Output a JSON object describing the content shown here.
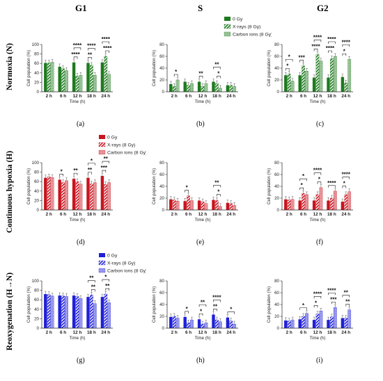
{
  "figure": {
    "column_titles": [
      "G1",
      "S",
      "G2"
    ],
    "row_titles": [
      "Normoxia (N)",
      "Continuous hypoxia (H)",
      "Reoxygenation (H→N)"
    ],
    "legend_labels": [
      "0 Gy",
      "X-rays (8 Gy)",
      "Carbon ions (8 Gy)"
    ],
    "row_colors": [
      "#1e7a1e",
      "#c8141e",
      "#1f1fd8"
    ],
    "ylabel": "Cell population (%)",
    "xlabel": "Time (h)",
    "categories": [
      "2 h",
      "6 h",
      "12 h",
      "18 h",
      "24 h"
    ],
    "panel_labels": [
      "(a)",
      "(b)",
      "(c)",
      "(d)",
      "(e)",
      "(f)",
      "(g)",
      "(h)",
      "(i)"
    ]
  },
  "chart_data": [
    {
      "panel": "(a)",
      "type": "bar",
      "title": "",
      "ylabel": "Cell population (%)",
      "xlabel": "Time (h)",
      "ylim": [
        0,
        100
      ],
      "ticks": [
        0,
        20,
        40,
        60,
        80,
        100
      ],
      "categories": [
        "2 h",
        "6 h",
        "12 h",
        "18 h",
        "24 h"
      ],
      "series": [
        {
          "name": "0 Gy",
          "values": [
            61,
            53,
            62,
            61,
            62
          ]
        },
        {
          "name": "X-rays (8 Gy)",
          "values": [
            61,
            49,
            33,
            56,
            75
          ]
        },
        {
          "name": "Carbon ions (8 Gy)",
          "values": [
            63,
            45,
            35,
            35,
            37
          ]
        }
      ],
      "annotations": [
        {
          "text": "****",
          "i": 2,
          "from": 0,
          "to": 1,
          "level": 0
        },
        {
          "text": "****",
          "i": 2,
          "from": 0,
          "to": 2,
          "level": 1
        },
        {
          "text": "**",
          "i": 3,
          "from": 0,
          "to": 1,
          "level": 0
        },
        {
          "text": "****",
          "i": 3,
          "from": 0,
          "to": 2,
          "level": 1
        },
        {
          "text": "****",
          "i": 4,
          "from": 1,
          "to": 2,
          "level": 0
        },
        {
          "text": "****",
          "i": 4,
          "from": 0,
          "to": 2,
          "level": 1
        }
      ],
      "legend_position": "none"
    },
    {
      "panel": "(b)",
      "type": "bar",
      "title": "",
      "ylabel": "Cell population (%)",
      "xlabel": "Time (h)",
      "ylim": [
        0,
        80
      ],
      "ticks": [
        0,
        20,
        40,
        60,
        80
      ],
      "categories": [
        "2 h",
        "6 h",
        "12 h",
        "18 h",
        "24 h"
      ],
      "series": [
        {
          "name": "0 Gy",
          "values": [
            13,
            17,
            17,
            17,
            11
          ]
        },
        {
          "name": "X-rays (8 Gy)",
          "values": [
            9,
            11,
            9,
            14,
            11
          ]
        },
        {
          "name": "Carbon ions (8 Gy)",
          "values": [
            20,
            14,
            14,
            6,
            9
          ]
        }
      ],
      "annotations": [
        {
          "text": "*",
          "i": 0,
          "from": 1,
          "to": 2,
          "level": 0
        },
        {
          "text": "**",
          "i": 2,
          "from": 0,
          "to": 1,
          "level": 0
        },
        {
          "text": "*",
          "i": 3,
          "from": 1,
          "to": 2,
          "level": 0
        },
        {
          "text": "**",
          "i": 3,
          "from": 0,
          "to": 2,
          "level": 1
        }
      ],
      "legend_position": "top-right"
    },
    {
      "panel": "(c)",
      "type": "bar",
      "title": "",
      "ylabel": "Cell population (%)",
      "xlabel": "Time (h)",
      "ylim": [
        0,
        80
      ],
      "ticks": [
        0,
        20,
        40,
        60,
        80
      ],
      "categories": [
        "2 h",
        "6 h",
        "12 h",
        "18 h",
        "24 h"
      ],
      "series": [
        {
          "name": "0 Gy",
          "values": [
            28,
            28,
            24,
            24,
            25
          ]
        },
        {
          "name": "X-rays (8 Gy)",
          "values": [
            30,
            44,
            63,
            56,
            15
          ]
        },
        {
          "name": "Carbon ions (8 Gy)",
          "values": [
            18,
            35,
            52,
            60,
            55
          ]
        }
      ],
      "annotations": [
        {
          "text": "*",
          "i": 0,
          "from": 0,
          "to": 1,
          "level": 0
        },
        {
          "text": "*",
          "i": 0,
          "from": 0,
          "to": 2,
          "level": 1
        },
        {
          "text": "***",
          "i": 1,
          "from": 0,
          "to": 1,
          "level": 0
        },
        {
          "text": "****",
          "i": 2,
          "from": 0,
          "to": 1,
          "level": 0
        },
        {
          "text": "****",
          "i": 2,
          "from": 0,
          "to": 2,
          "level": 1
        },
        {
          "text": "****",
          "i": 3,
          "from": 0,
          "to": 1,
          "level": 0
        },
        {
          "text": "****",
          "i": 3,
          "from": 0,
          "to": 2,
          "level": 1
        },
        {
          "text": "*",
          "i": 4,
          "from": 0,
          "to": 1,
          "level": 0
        },
        {
          "text": "****",
          "i": 4,
          "from": 0,
          "to": 2,
          "level": 1
        }
      ],
      "legend_position": "none"
    },
    {
      "panel": "(d)",
      "type": "bar",
      "title": "",
      "ylabel": "Cell population (%)",
      "xlabel": "Time (h)",
      "ylim": [
        0,
        100
      ],
      "ticks": [
        0,
        20,
        40,
        60,
        80,
        100
      ],
      "categories": [
        "2 h",
        "6 h",
        "12 h",
        "18 h",
        "24 h"
      ],
      "series": [
        {
          "name": "0 Gy",
          "values": [
            68,
            64,
            66,
            68,
            72
          ]
        },
        {
          "name": "X-rays (8 Gy)",
          "values": [
            70,
            58,
            60,
            55,
            54
          ]
        },
        {
          "name": "Carbon ions (8 Gy)",
          "values": [
            69,
            62,
            55,
            58,
            58
          ]
        }
      ],
      "annotations": [
        {
          "text": "*",
          "i": 1,
          "from": 0,
          "to": 1,
          "level": 0
        },
        {
          "text": "**",
          "i": 2,
          "from": 0,
          "to": 1,
          "level": 0
        },
        {
          "text": "**",
          "i": 3,
          "from": 0,
          "to": 1,
          "level": 0
        },
        {
          "text": "*",
          "i": 3,
          "from": 0,
          "to": 2,
          "level": 1
        },
        {
          "text": "***",
          "i": 4,
          "from": 0,
          "to": 1,
          "level": 0
        },
        {
          "text": "**",
          "i": 4,
          "from": 0,
          "to": 2,
          "level": 1
        }
      ],
      "legend_position": "top-right"
    },
    {
      "panel": "(e)",
      "type": "bar",
      "title": "",
      "ylabel": "Cell population (%)",
      "xlabel": "Time (h)",
      "ylim": [
        0,
        80
      ],
      "ticks": [
        0,
        20,
        40,
        60,
        80
      ],
      "categories": [
        "2 h",
        "6 h",
        "12 h",
        "18 h",
        "24 h"
      ],
      "series": [
        {
          "name": "0 Gy",
          "values": [
            18,
            15,
            16,
            17,
            12
          ]
        },
        {
          "name": "X-rays (8 Gy)",
          "values": [
            17,
            24,
            14,
            16,
            11
          ]
        },
        {
          "name": "Carbon ions (8 Gy)",
          "values": [
            15,
            16,
            11,
            6,
            8
          ]
        }
      ],
      "annotations": [
        {
          "text": "*",
          "i": 1,
          "from": 0,
          "to": 1,
          "level": 0
        },
        {
          "text": "*",
          "i": 3,
          "from": 1,
          "to": 2,
          "level": 0
        },
        {
          "text": "**",
          "i": 3,
          "from": 0,
          "to": 2,
          "level": 1
        }
      ],
      "legend_position": "none"
    },
    {
      "panel": "(f)",
      "type": "bar",
      "title": "",
      "ylabel": "Cell population (%)",
      "xlabel": "Time (h)",
      "ylim": [
        0,
        80
      ],
      "ticks": [
        0,
        20,
        40,
        60,
        80
      ],
      "categories": [
        "2 h",
        "6 h",
        "12 h",
        "18 h",
        "24 h"
      ],
      "series": [
        {
          "name": "0 Gy",
          "values": [
            18,
            16,
            16,
            16,
            14
          ]
        },
        {
          "name": "X-rays (8 Gy)",
          "values": [
            17,
            28,
            26,
            20,
            26
          ]
        },
        {
          "name": "Carbon ions (8 Gy)",
          "values": [
            18,
            26,
            38,
            32,
            31
          ]
        }
      ],
      "annotations": [
        {
          "text": "*",
          "i": 1,
          "from": 0,
          "to": 1,
          "level": 0
        },
        {
          "text": "*",
          "i": 1,
          "from": 0,
          "to": 2,
          "level": 1
        },
        {
          "text": "*",
          "i": 2,
          "from": 1,
          "to": 2,
          "level": 0
        },
        {
          "text": "****",
          "i": 2,
          "from": 0,
          "to": 2,
          "level": 1
        },
        {
          "text": "****",
          "i": 3,
          "from": 0,
          "to": 2,
          "level": 0
        },
        {
          "text": "*",
          "i": 4,
          "from": 0,
          "to": 1,
          "level": 0
        },
        {
          "text": "****",
          "i": 4,
          "from": 0,
          "to": 2,
          "level": 1
        }
      ],
      "legend_position": "none"
    },
    {
      "panel": "(g)",
      "type": "bar",
      "title": "",
      "ylabel": "Cell population (%)",
      "xlabel": "Time (h)",
      "ylim": [
        0,
        100
      ],
      "ticks": [
        0,
        20,
        40,
        60,
        80,
        100
      ],
      "categories": [
        "2 h",
        "6 h",
        "12 h",
        "18 h",
        "24 h"
      ],
      "series": [
        {
          "name": "0 Gy",
          "values": [
            72,
            69,
            69,
            66,
            66
          ]
        },
        {
          "name": "X-rays (8 Gy)",
          "values": [
            71,
            68,
            67,
            70,
            72
          ]
        },
        {
          "name": "Carbon ions (8 Gy)",
          "values": [
            68,
            67,
            63,
            52,
            54
          ]
        }
      ],
      "annotations": [
        {
          "text": "**",
          "i": 3,
          "from": 1,
          "to": 2,
          "level": 0
        },
        {
          "text": "**",
          "i": 3,
          "from": 0,
          "to": 2,
          "level": 1
        },
        {
          "text": "**",
          "i": 4,
          "from": 1,
          "to": 2,
          "level": 0
        },
        {
          "text": "*",
          "i": 4,
          "from": 0,
          "to": 2,
          "level": 1
        }
      ],
      "legend_position": "top-right"
    },
    {
      "panel": "(h)",
      "type": "bar",
      "title": "",
      "ylabel": "Cell population (%)",
      "xlabel": "Time (h)",
      "ylim": [
        0,
        80
      ],
      "ticks": [
        0,
        20,
        40,
        60,
        80
      ],
      "categories": [
        "2 h",
        "6 h",
        "12 h",
        "18 h",
        "24 h"
      ],
      "series": [
        {
          "name": "0 Gy",
          "values": [
            19,
            19,
            15,
            23,
            18
          ]
        },
        {
          "name": "X-rays (8 Gy)",
          "values": [
            20,
            9,
            7,
            14,
            12
          ]
        },
        {
          "name": "Carbon ions (8 Gy)",
          "values": [
            17,
            14,
            9,
            11,
            7
          ]
        }
      ],
      "annotations": [
        {
          "text": "*",
          "i": 1,
          "from": 0,
          "to": 1,
          "level": 0
        },
        {
          "text": "*",
          "i": 2,
          "from": 0,
          "to": 1,
          "level": 0
        },
        {
          "text": "**",
          "i": 2,
          "from": 0,
          "to": 2,
          "level": 1
        },
        {
          "text": "**",
          "i": 3,
          "from": 0,
          "to": 1,
          "level": 0
        },
        {
          "text": "****",
          "i": 3,
          "from": 0,
          "to": 2,
          "level": 1
        },
        {
          "text": "*",
          "i": 4,
          "from": 0,
          "to": 2,
          "level": 0
        }
      ],
      "legend_position": "none"
    },
    {
      "panel": "(i)",
      "type": "bar",
      "title": "",
      "ylabel": "Cell population (%)",
      "xlabel": "Time (h)",
      "ylim": [
        0,
        80
      ],
      "ticks": [
        0,
        20,
        40,
        60,
        80
      ],
      "categories": [
        "2 h",
        "6 h",
        "12 h",
        "18 h",
        "24 h"
      ],
      "series": [
        {
          "name": "0 Gy",
          "values": [
            13,
            15,
            14,
            14,
            17
          ]
        },
        {
          "name": "X-rays (8 Gy)",
          "values": [
            12,
            20,
            24,
            19,
            17
          ]
        },
        {
          "name": "Carbon ions (8 Gy)",
          "values": [
            14,
            25,
            29,
            35,
            31
          ]
        }
      ],
      "annotations": [
        {
          "text": "*",
          "i": 1,
          "from": 0,
          "to": 2,
          "level": 0
        },
        {
          "text": "*",
          "i": 2,
          "from": 0,
          "to": 1,
          "level": 0
        },
        {
          "text": "****",
          "i": 2,
          "from": 0,
          "to": 2,
          "level": 1
        },
        {
          "text": "***",
          "i": 3,
          "from": 1,
          "to": 2,
          "level": 0
        },
        {
          "text": "****",
          "i": 3,
          "from": 0,
          "to": 2,
          "level": 1
        },
        {
          "text": "**",
          "i": 4,
          "from": 1,
          "to": 2,
          "level": 0
        },
        {
          "text": "**",
          "i": 4,
          "from": 0,
          "to": 2,
          "level": 1
        }
      ],
      "legend_position": "none"
    }
  ]
}
